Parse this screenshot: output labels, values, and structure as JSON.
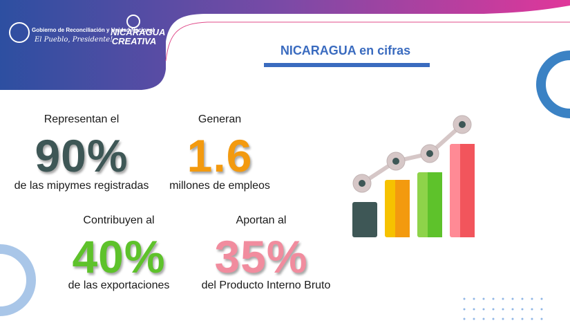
{
  "header": {
    "government": "Gobierno de Reconciliación y Unidad Nacional",
    "slogan": "El Pueblo, Presidente!",
    "brand": "NICARAGUA CREATIVA"
  },
  "title": "NICARAGUA en cifras",
  "stats": [
    {
      "pre": "Representan el",
      "value": "90%",
      "post": "de las mipymes registradas"
    },
    {
      "pre": "Generan",
      "value": "1.6",
      "post": "millones de empleos"
    },
    {
      "pre": "Contribuyen al",
      "value": "40%",
      "post": "de las exportaciones"
    },
    {
      "pre": "Aportan al",
      "value": "35%",
      "post": "del Producto Interno Bruto"
    }
  ]
}
